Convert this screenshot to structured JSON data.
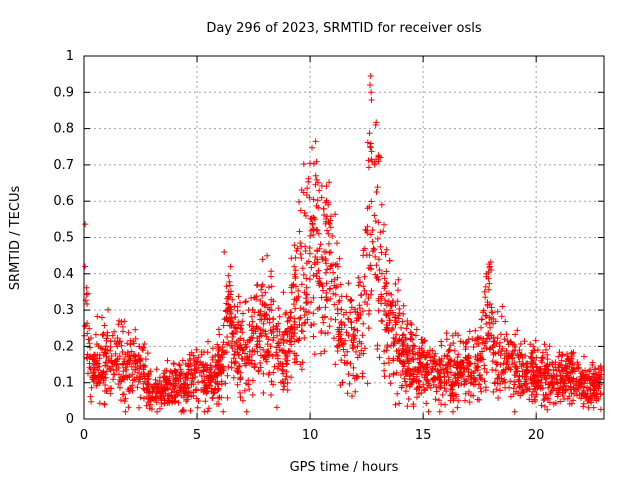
{
  "chart_data": {
    "type": "scatter",
    "title": "Day 296 of 2023, SRMTID for receiver osls",
    "xlabel": "GPS time / hours",
    "ylabel": "SRMTID / TECUs",
    "xlim": [
      0,
      23
    ],
    "ylim": [
      0,
      1
    ],
    "x_ticks": [
      0,
      5,
      10,
      15,
      20
    ],
    "x_tick_labels": [
      "0",
      "5",
      "10",
      "15",
      "20"
    ],
    "y_ticks": [
      0,
      0.1,
      0.2,
      0.3,
      0.4,
      0.5,
      0.6,
      0.7,
      0.8,
      0.9,
      1
    ],
    "y_tick_labels": [
      "0",
      "0.1",
      "0.2",
      "0.3",
      "0.4",
      "0.5",
      "0.6",
      "0.7",
      "0.8",
      "0.9",
      "1"
    ],
    "grid": true,
    "marker": "+",
    "color": "#ff0000",
    "series": [
      {
        "name": "osls",
        "trend": {
          "x": [
            0,
            0.05,
            0.3,
            0.6,
            1.0,
            1.5,
            2.0,
            2.5,
            2.9,
            3.3,
            3.8,
            4.2,
            4.6,
            5.0,
            5.4,
            5.8,
            6.1,
            6.4,
            6.8,
            7.2,
            7.6,
            8.0,
            8.3,
            8.6,
            9.0,
            9.3,
            9.6,
            9.9,
            10.2,
            10.5,
            10.8,
            11.1,
            11.4,
            11.7,
            12.0,
            12.3,
            12.6,
            12.8,
            13.0,
            13.2,
            13.4,
            13.7,
            14.0,
            14.4,
            14.8,
            15.2,
            15.6,
            16.0,
            16.4,
            16.8,
            17.2,
            17.5,
            17.9,
            18.2,
            18.6,
            19.0,
            19.4,
            19.8,
            20.2,
            20.6,
            21.0,
            21.4,
            21.8,
            22.2,
            22.6,
            22.9
          ],
          "y": [
            0.22,
            0.33,
            0.13,
            0.15,
            0.18,
            0.16,
            0.14,
            0.15,
            0.08,
            0.07,
            0.1,
            0.09,
            0.1,
            0.12,
            0.1,
            0.12,
            0.15,
            0.28,
            0.2,
            0.18,
            0.22,
            0.25,
            0.23,
            0.19,
            0.18,
            0.3,
            0.36,
            0.42,
            0.5,
            0.38,
            0.4,
            0.33,
            0.22,
            0.24,
            0.2,
            0.28,
            0.55,
            0.6,
            0.5,
            0.38,
            0.3,
            0.25,
            0.18,
            0.16,
            0.15,
            0.12,
            0.12,
            0.13,
            0.12,
            0.13,
            0.14,
            0.16,
            0.28,
            0.17,
            0.16,
            0.14,
            0.13,
            0.12,
            0.12,
            0.11,
            0.11,
            0.12,
            0.1,
            0.09,
            0.09,
            0.1
          ]
        },
        "spread": 0.35,
        "count": 2600,
        "peaks": [
          {
            "x": 0.05,
            "y": 0.42
          },
          {
            "x": 6.2,
            "y": 0.46
          },
          {
            "x": 8.1,
            "y": 0.45
          },
          {
            "x": 10.25,
            "y": 0.67
          },
          {
            "x": 10.8,
            "y": 0.59
          },
          {
            "x": 12.65,
            "y": 0.92
          },
          {
            "x": 12.7,
            "y": 0.9
          },
          {
            "x": 12.9,
            "y": 0.81
          },
          {
            "x": 12.65,
            "y": 0.75
          },
          {
            "x": 13.1,
            "y": 0.72
          },
          {
            "x": 17.95,
            "y": 0.42
          },
          {
            "x": 18.5,
            "y": 0.31
          },
          {
            "x": 14.3,
            "y": 0.27
          }
        ]
      }
    ]
  }
}
